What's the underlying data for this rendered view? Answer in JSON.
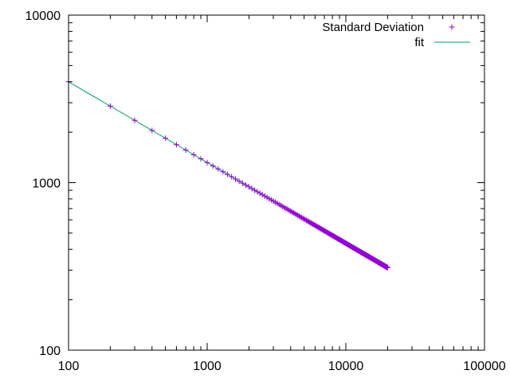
{
  "chart_data": {
    "type": "scatter",
    "title": "",
    "xlabel": "",
    "ylabel": "",
    "x_scale": "log",
    "y_scale": "log",
    "xlim": [
      100,
      100000
    ],
    "ylim": [
      100,
      10000
    ],
    "x_ticks": [
      "100",
      "1000",
      "10000",
      "100000"
    ],
    "y_ticks": [
      "100",
      "1000",
      "10000"
    ],
    "grid": false,
    "legend_position": "top-right",
    "series": [
      {
        "name": "Standard Deviation",
        "kind": "points",
        "marker": "+",
        "color": "#9400d3",
        "sampling": "x = 100, 200, 300 ... 20000",
        "x_start": 100,
        "x_end": 20000,
        "x_step": 100,
        "y_at_x100": 4000,
        "y_at_x20000": 311
      },
      {
        "name": "fit",
        "kind": "line",
        "color": "#009e73",
        "x_start": 100,
        "x_end": 20000,
        "y_at_x100": 4000,
        "y_at_x20000": 311
      }
    ]
  }
}
